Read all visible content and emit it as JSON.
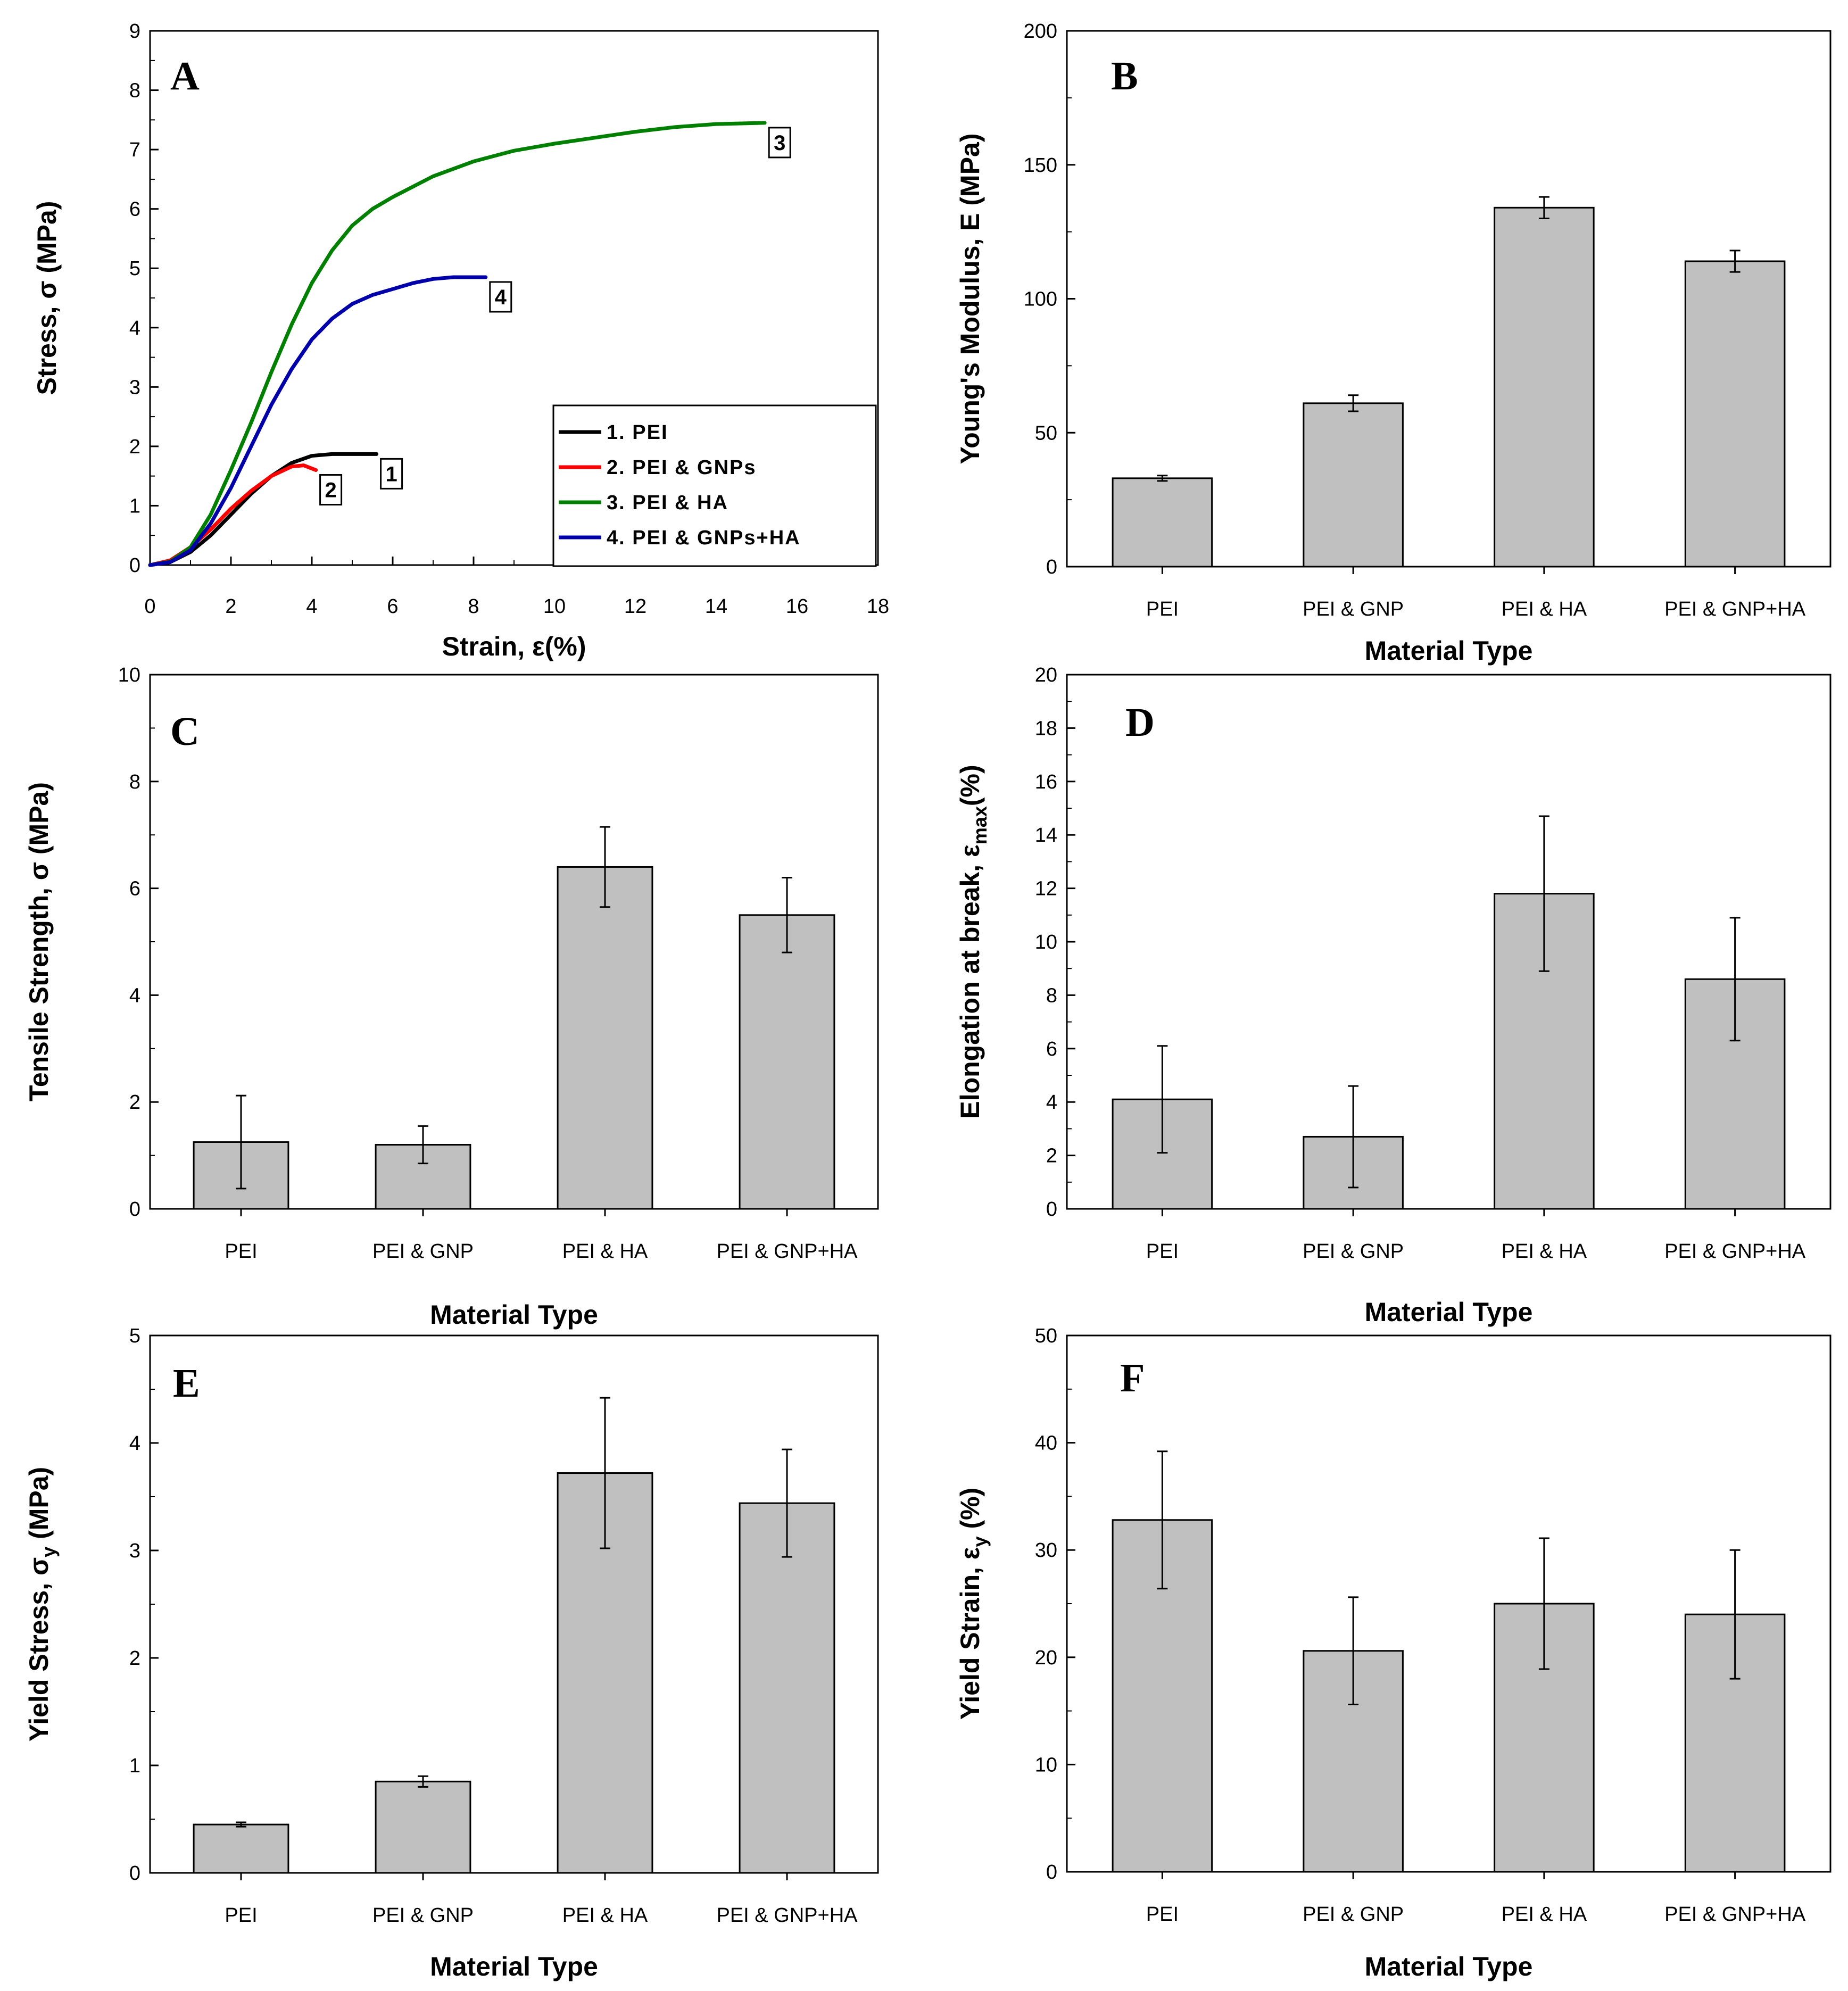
{
  "chart_data": [
    {
      "id": "A",
      "type": "line",
      "label": "A",
      "xlabel": "Strain, ε(%)",
      "ylabel": "Stress, σ (MPa)",
      "xlim": [
        0,
        18
      ],
      "ylim": [
        0,
        9
      ],
      "xticks": [
        0,
        2,
        4,
        6,
        8,
        10,
        12,
        14,
        16,
        18
      ],
      "yticks": [
        0,
        1,
        2,
        3,
        4,
        5,
        6,
        7,
        8,
        9
      ],
      "legend_position": "bottom-right",
      "series": [
        {
          "name": "1. PEI",
          "tag": "1",
          "color": "#000000",
          "x": [
            0,
            0.5,
            1.0,
            1.5,
            2.0,
            2.5,
            3.0,
            3.5,
            4.0,
            4.5,
            5.0,
            5.6
          ],
          "y": [
            0,
            0.05,
            0.22,
            0.5,
            0.85,
            1.2,
            1.5,
            1.72,
            1.84,
            1.87,
            1.87,
            1.87
          ]
        },
        {
          "name": "2. PEI & GNPs",
          "tag": "2",
          "color": "#ff0000",
          "x": [
            0,
            0.5,
            1.0,
            1.5,
            2.0,
            2.5,
            3.0,
            3.5,
            3.8,
            4.1
          ],
          "y": [
            0,
            0.08,
            0.3,
            0.6,
            0.95,
            1.25,
            1.5,
            1.66,
            1.68,
            1.6
          ]
        },
        {
          "name": "3. PEI & HA",
          "tag": "3",
          "color": "#008000",
          "x": [
            0,
            0.5,
            1.0,
            1.5,
            2.0,
            2.5,
            3.0,
            3.5,
            4.0,
            4.5,
            5.0,
            5.5,
            6.0,
            7.0,
            8.0,
            9.0,
            10.0,
            11.0,
            12.0,
            13.0,
            14.0,
            15.2
          ],
          "y": [
            0,
            0.06,
            0.3,
            0.85,
            1.6,
            2.4,
            3.25,
            4.05,
            4.75,
            5.3,
            5.72,
            6.0,
            6.2,
            6.55,
            6.8,
            6.98,
            7.1,
            7.2,
            7.3,
            7.38,
            7.43,
            7.45
          ]
        },
        {
          "name": "4. PEI & GNPs+HA",
          "tag": "4",
          "color": "#0000aa",
          "x": [
            0,
            0.5,
            1.0,
            1.5,
            2.0,
            2.5,
            3.0,
            3.5,
            4.0,
            4.5,
            5.0,
            5.5,
            6.0,
            6.5,
            7.0,
            7.5,
            8.3
          ],
          "y": [
            0,
            0.05,
            0.25,
            0.7,
            1.3,
            2.0,
            2.7,
            3.3,
            3.8,
            4.15,
            4.4,
            4.55,
            4.65,
            4.75,
            4.82,
            4.85,
            4.85
          ]
        }
      ]
    },
    {
      "id": "B",
      "type": "bar",
      "label": "B",
      "xlabel": "Material Type",
      "ylabel": "Young's Modulus, E (MPa)",
      "categories": [
        "PEI",
        "PEI & GNP",
        "PEI & HA",
        "PEI & GNP+HA"
      ],
      "values": [
        33,
        61,
        134,
        114
      ],
      "errors": [
        1,
        3,
        4,
        4
      ],
      "ylim": [
        0,
        200
      ],
      "yticks": [
        0,
        50,
        100,
        150,
        200
      ]
    },
    {
      "id": "C",
      "type": "bar",
      "label": "C",
      "xlabel": "Material Type",
      "ylabel": "Tensile Strength, σ (MPa)",
      "categories": [
        "PEI",
        "PEI & GNP",
        "PEI & HA",
        "PEI & GNP+HA"
      ],
      "values": [
        1.25,
        1.2,
        6.4,
        5.5
      ],
      "errors": [
        0.87,
        0.35,
        0.75,
        0.7
      ],
      "ylim": [
        0,
        10
      ],
      "yticks": [
        0,
        2,
        4,
        6,
        8,
        10
      ]
    },
    {
      "id": "D",
      "type": "bar",
      "label": "D",
      "xlabel": "Material Type",
      "ylabel": "Elongation at break, ε",
      "ylabel_sub": "max",
      "ylabel_suffix": "(%)",
      "categories": [
        "PEI",
        "PEI & GNP",
        "PEI & HA",
        "PEI & GNP+HA"
      ],
      "values": [
        4.1,
        2.7,
        11.8,
        8.6
      ],
      "errors": [
        2.0,
        1.9,
        2.9,
        2.3
      ],
      "ylim": [
        0,
        20
      ],
      "yticks": [
        0,
        2,
        4,
        6,
        8,
        10,
        12,
        14,
        16,
        18,
        20
      ]
    },
    {
      "id": "E",
      "type": "bar",
      "label": "E",
      "xlabel": "Material Type",
      "ylabel": "Yield Stress, σ",
      "ylabel_sub": "y",
      "ylabel_suffix": " (MPa)",
      "categories": [
        "PEI",
        "PEI & GNP",
        "PEI & HA",
        "PEI & GNP+HA"
      ],
      "values": [
        0.45,
        0.85,
        3.72,
        3.44
      ],
      "errors": [
        0.02,
        0.05,
        0.7,
        0.5
      ],
      "ylim": [
        0,
        5
      ],
      "yticks": [
        0,
        1,
        2,
        3,
        4,
        5
      ]
    },
    {
      "id": "F",
      "type": "bar",
      "label": "F",
      "xlabel": "Material Type",
      "ylabel": "Yield Strain, ε",
      "ylabel_sub": "y",
      "ylabel_suffix": " (%)",
      "categories": [
        "PEI",
        "PEI & GNP",
        "PEI & HA",
        "PEI & GNP+HA"
      ],
      "values": [
        32.8,
        20.6,
        25.0,
        24.0
      ],
      "errors": [
        6.4,
        5.0,
        6.1,
        6.0
      ],
      "ylim": [
        0,
        50
      ],
      "yticks": [
        0,
        10,
        20,
        30,
        40,
        50
      ]
    }
  ],
  "colors": {
    "bar_fill": "#c0c0c0",
    "axis": "#000000"
  }
}
